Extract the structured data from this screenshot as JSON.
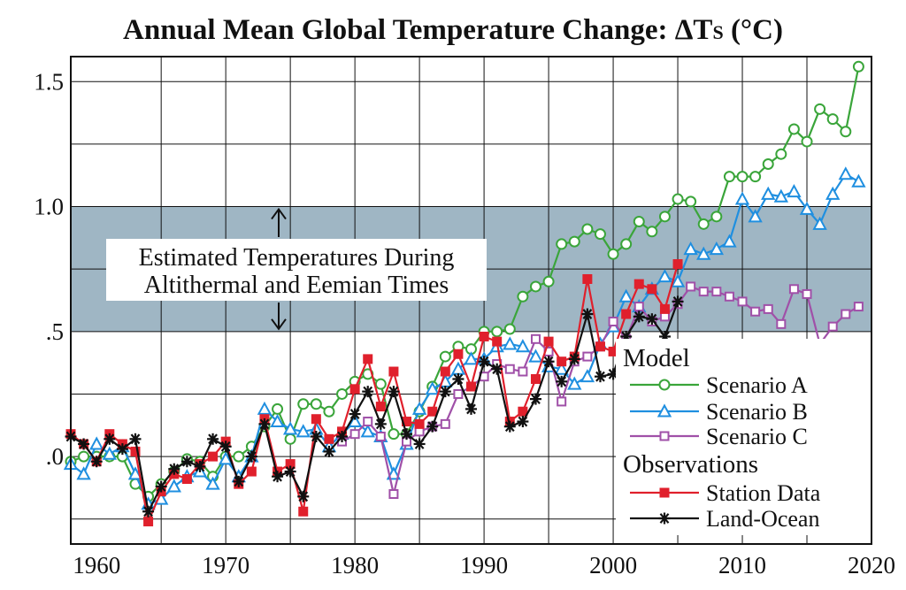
{
  "chart_data": {
    "type": "line",
    "title_main": "Annual Mean Global Temperature Change: ",
    "title_delta": "ΔT",
    "title_sub": "S",
    "title_unit": " (°C)",
    "xlim": [
      1958,
      2020
    ],
    "ylim": [
      -0.35,
      1.6
    ],
    "xticks": [
      1960,
      1970,
      1980,
      1990,
      2000,
      2010,
      2020
    ],
    "xtick_labels": [
      "1960",
      "1970",
      "1980",
      "1990",
      "2000",
      "2010",
      "2020"
    ],
    "yticks": [
      0,
      0.5,
      1.0,
      1.5
    ],
    "ytick_labels": [
      ".0",
      ".5",
      "1.0",
      "1.5"
    ],
    "grid": true,
    "band": {
      "from": 0.5,
      "to": 1.0,
      "color": "#9fb6c4",
      "label_line1": "Estimated Temperatures During",
      "label_line2": "Altithermal and Eemian Times"
    },
    "legend": {
      "position": "bottom-right",
      "model_heading": "Model",
      "obs_heading": "Observations"
    },
    "series": [
      {
        "name": "Scenario A",
        "group": "model",
        "color": "#3aa53a",
        "marker": "circle",
        "x": [
          1958,
          1959,
          1960,
          1961,
          1962,
          1963,
          1964,
          1965,
          1966,
          1967,
          1968,
          1969,
          1970,
          1971,
          1972,
          1973,
          1974,
          1975,
          1976,
          1977,
          1978,
          1979,
          1980,
          1981,
          1982,
          1983,
          1984,
          1985,
          1986,
          1987,
          1988,
          1989,
          1990,
          1991,
          1992,
          1993,
          1994,
          1995,
          1996,
          1997,
          1998,
          1999,
          2000,
          2001,
          2002,
          2003,
          2004,
          2005,
          2006,
          2007,
          2008,
          2009,
          2010,
          2011,
          2012,
          2013,
          2014,
          2015,
          2016,
          2017,
          2018,
          2019
        ],
        "y": [
          -0.02,
          0.0,
          0.0,
          0.0,
          0.0,
          -0.11,
          -0.16,
          -0.11,
          -0.06,
          -0.01,
          -0.02,
          -0.08,
          0.0,
          0.0,
          0.04,
          0.12,
          0.19,
          0.07,
          0.21,
          0.21,
          0.18,
          0.25,
          0.3,
          0.33,
          0.29,
          0.09,
          0.09,
          0.18,
          0.28,
          0.4,
          0.44,
          0.43,
          0.5,
          0.5,
          0.51,
          0.64,
          0.68,
          0.7,
          0.85,
          0.86,
          0.91,
          0.89,
          0.81,
          0.85,
          0.94,
          0.9,
          0.96,
          1.03,
          1.02,
          0.93,
          0.96,
          1.12,
          1.12,
          1.12,
          1.17,
          1.21,
          1.31,
          1.26,
          1.39,
          1.35,
          1.3,
          1.56
        ]
      },
      {
        "name": "Scenario B",
        "group": "model",
        "color": "#1f8fe0",
        "marker": "triangle",
        "x": [
          1958,
          1959,
          1960,
          1961,
          1962,
          1963,
          1964,
          1965,
          1966,
          1967,
          1968,
          1969,
          1970,
          1971,
          1972,
          1973,
          1974,
          1975,
          1976,
          1977,
          1978,
          1979,
          1980,
          1981,
          1982,
          1983,
          1984,
          1985,
          1986,
          1987,
          1988,
          1989,
          1990,
          1991,
          1992,
          1993,
          1994,
          1995,
          1996,
          1997,
          1998,
          1999,
          2000,
          2001,
          2002,
          2003,
          2004,
          2005,
          2006,
          2007,
          2008,
          2009,
          2010,
          2011,
          2012,
          2013,
          2014,
          2015,
          2016,
          2017,
          2018,
          2019
        ],
        "y": [
          -0.03,
          -0.07,
          0.05,
          0.01,
          0.04,
          -0.07,
          -0.19,
          -0.17,
          -0.12,
          -0.08,
          -0.06,
          -0.11,
          -0.01,
          -0.08,
          0.0,
          0.19,
          0.14,
          0.11,
          0.1,
          0.11,
          0.04,
          0.09,
          0.14,
          0.1,
          0.08,
          -0.07,
          0.05,
          0.19,
          0.27,
          0.3,
          0.35,
          0.39,
          0.39,
          0.44,
          0.45,
          0.44,
          0.4,
          0.36,
          0.35,
          0.29,
          0.32,
          0.45,
          0.52,
          0.64,
          0.6,
          0.67,
          0.72,
          0.7,
          0.83,
          0.81,
          0.83,
          0.86,
          1.03,
          0.96,
          1.05,
          1.04,
          1.06,
          0.99,
          0.93,
          1.05,
          1.13,
          1.1
        ]
      },
      {
        "name": "Scenario C",
        "group": "model",
        "color": "#a050a8",
        "marker": "square",
        "x": [
          1979,
          1980,
          1981,
          1982,
          1983,
          1984,
          1985,
          1986,
          1987,
          1988,
          1989,
          1990,
          1991,
          1992,
          1993,
          1994,
          1995,
          1996,
          1997,
          1998,
          1999,
          2000,
          2001,
          2002,
          2003,
          2004,
          2005,
          2006,
          2007,
          2008,
          2009,
          2010,
          2011,
          2012,
          2013,
          2014,
          2015,
          2016,
          2017,
          2018,
          2019
        ],
        "y": [
          0.06,
          0.09,
          0.14,
          0.08,
          -0.15,
          0.06,
          0.1,
          0.12,
          0.13,
          0.25,
          0.28,
          0.32,
          0.37,
          0.35,
          0.34,
          0.47,
          0.42,
          0.22,
          0.38,
          0.4,
          0.44,
          0.54,
          0.47,
          0.6,
          0.54,
          0.56,
          0.61,
          0.68,
          0.66,
          0.66,
          0.64,
          0.62,
          0.58,
          0.59,
          0.53,
          0.67,
          0.65,
          0.45,
          0.52,
          0.57,
          0.6
        ]
      },
      {
        "name": "Station Data",
        "group": "observations",
        "color": "#e0202c",
        "marker": "filled-square",
        "x": [
          1958,
          1959,
          1960,
          1961,
          1962,
          1963,
          1964,
          1965,
          1966,
          1967,
          1968,
          1969,
          1970,
          1971,
          1972,
          1973,
          1974,
          1975,
          1976,
          1977,
          1978,
          1979,
          1980,
          1981,
          1982,
          1983,
          1984,
          1985,
          1986,
          1987,
          1988,
          1989,
          1990,
          1991,
          1992,
          1993,
          1994,
          1995,
          1996,
          1997,
          1998,
          1999,
          2000,
          2001,
          2002,
          2003,
          2004,
          2005
        ],
        "y": [
          0.09,
          0.05,
          -0.02,
          0.09,
          0.05,
          0.02,
          -0.26,
          -0.14,
          -0.07,
          -0.09,
          -0.03,
          0.0,
          0.06,
          -0.11,
          -0.06,
          0.15,
          -0.06,
          -0.03,
          -0.22,
          0.15,
          0.07,
          0.1,
          0.27,
          0.39,
          0.2,
          0.34,
          0.14,
          0.13,
          0.18,
          0.34,
          0.41,
          0.28,
          0.48,
          0.46,
          0.14,
          0.18,
          0.31,
          0.46,
          0.38,
          0.4,
          0.71,
          0.44,
          0.42,
          0.57,
          0.69,
          0.67,
          0.59,
          0.77
        ]
      },
      {
        "name": "Land-Ocean",
        "group": "observations",
        "color": "#111111",
        "marker": "asterisk",
        "x": [
          1958,
          1959,
          1960,
          1961,
          1962,
          1963,
          1964,
          1965,
          1966,
          1967,
          1968,
          1969,
          1970,
          1971,
          1972,
          1973,
          1974,
          1975,
          1976,
          1977,
          1978,
          1979,
          1980,
          1981,
          1982,
          1983,
          1984,
          1985,
          1986,
          1987,
          1988,
          1989,
          1990,
          1991,
          1992,
          1993,
          1994,
          1995,
          1996,
          1997,
          1998,
          1999,
          2000,
          2001,
          2002,
          2003,
          2004,
          2005
        ],
        "y": [
          0.08,
          0.05,
          -0.02,
          0.07,
          0.03,
          0.07,
          -0.22,
          -0.12,
          -0.05,
          -0.02,
          -0.04,
          0.07,
          0.04,
          -0.1,
          0.0,
          0.13,
          -0.08,
          -0.06,
          -0.16,
          0.08,
          0.02,
          0.08,
          0.17,
          0.26,
          0.13,
          0.26,
          0.09,
          0.05,
          0.12,
          0.26,
          0.31,
          0.19,
          0.38,
          0.35,
          0.12,
          0.14,
          0.23,
          0.38,
          0.3,
          0.39,
          0.57,
          0.32,
          0.33,
          0.48,
          0.56,
          0.55,
          0.48,
          0.62
        ]
      }
    ]
  }
}
